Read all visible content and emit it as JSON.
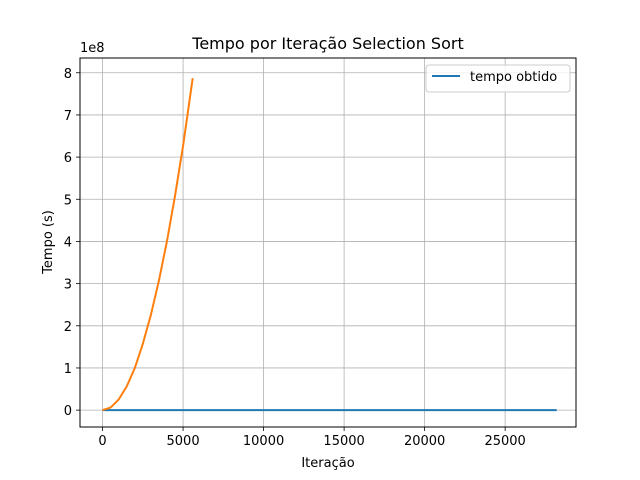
{
  "chart_data": {
    "type": "line",
    "title": "Tempo por Iteração Selection Sort",
    "xlabel": "Iteração",
    "ylabel": "Tempo (s)",
    "y_offset_label": "1e8",
    "xlim": [
      -1400,
      29400
    ],
    "ylim": [
      -0.4,
      8.35
    ],
    "y_scale_note": "y values in units of 1e8",
    "x_ticks": [
      0,
      5000,
      10000,
      15000,
      20000,
      25000
    ],
    "x_tick_labels": [
      "0",
      "5000",
      "10000",
      "15000",
      "20000",
      "25000"
    ],
    "y_ticks": [
      0,
      1,
      2,
      3,
      4,
      5,
      6,
      7,
      8
    ],
    "y_tick_labels": [
      "0",
      "1",
      "2",
      "3",
      "4",
      "5",
      "6",
      "7",
      "8"
    ],
    "grid": true,
    "legend_position": "top-right",
    "series": [
      {
        "name": "tempo obtido",
        "color": "#1f77b4",
        "x": [
          0,
          28200
        ],
        "y": [
          0,
          0
        ]
      },
      {
        "name": "",
        "color": "#ff7f0e",
        "x": [
          0,
          500,
          1000,
          1500,
          2000,
          2500,
          3000,
          3500,
          4000,
          4500,
          5000,
          5600
        ],
        "y": [
          0,
          0.06,
          0.25,
          0.56,
          1.0,
          1.57,
          2.26,
          3.07,
          4.01,
          5.08,
          6.27,
          7.87
        ]
      }
    ]
  }
}
